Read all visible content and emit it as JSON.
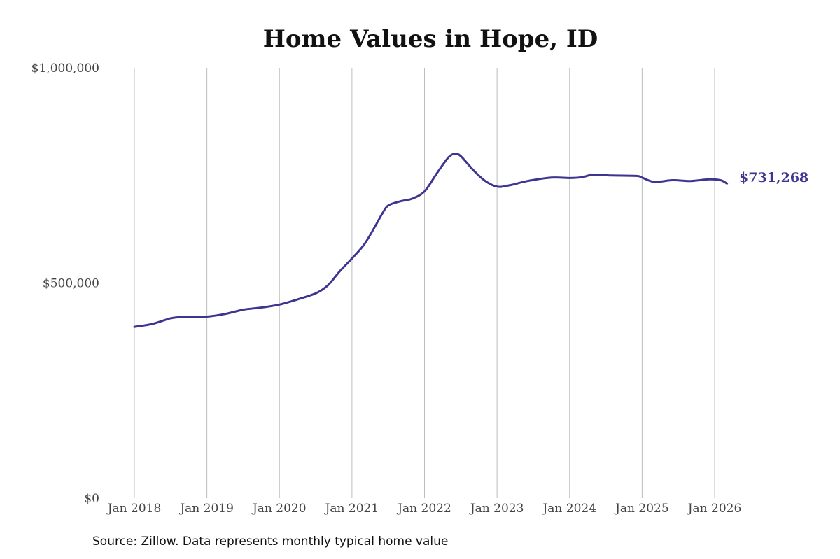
{
  "chart_data": {
    "type": "line",
    "title": "Home Values in Hope, ID",
    "source": "Source: Zillow. Data represents monthly typical home value",
    "y_ticks": [
      {
        "value": 0,
        "label": "$0"
      },
      {
        "value": 500000,
        "label": "$500,000"
      },
      {
        "value": 1000000,
        "label": "$1,000,000"
      }
    ],
    "x_ticks": [
      {
        "value": 2018,
        "label": "Jan 2018"
      },
      {
        "value": 2019,
        "label": "Jan 2019"
      },
      {
        "value": 2020,
        "label": "Jan 2020"
      },
      {
        "value": 2021,
        "label": "Jan 2021"
      },
      {
        "value": 2022,
        "label": "Jan 2022"
      },
      {
        "value": 2023,
        "label": "Jan 2023"
      },
      {
        "value": 2024,
        "label": "Jan 2024"
      },
      {
        "value": 2025,
        "label": "Jan 2025"
      },
      {
        "value": 2026,
        "label": "Jan 2026"
      }
    ],
    "xlim": [
      2018,
      2026.17
    ],
    "ylim": [
      0,
      1000000
    ],
    "grid": "vertical",
    "line_color": "#3d3590",
    "end_label": "$731,268",
    "series": [
      {
        "x": [
          2018.0,
          2018.25,
          2018.5,
          2018.67,
          2019.0,
          2019.25,
          2019.5,
          2019.75,
          2020.0,
          2020.25,
          2020.5,
          2020.67,
          2020.83,
          2021.0,
          2021.17,
          2021.33,
          2021.42,
          2021.5,
          2021.67,
          2021.83,
          2022.0,
          2022.17,
          2022.33,
          2022.42,
          2022.5,
          2022.67,
          2022.83,
          2023.0,
          2023.17,
          2023.42,
          2023.75,
          2024.0,
          2024.17,
          2024.33,
          2024.58,
          2024.92,
          2025.0,
          2025.17,
          2025.42,
          2025.67,
          2025.92,
          2026.08,
          2026.17
        ],
        "values": [
          398000,
          405000,
          418000,
          421000,
          422000,
          428000,
          438000,
          443000,
          450000,
          462000,
          476000,
          495000,
          527000,
          557000,
          590000,
          635000,
          662000,
          680000,
          690000,
          696000,
          713000,
          755000,
          792000,
          800000,
          795000,
          763000,
          738000,
          724000,
          727000,
          737000,
          745000,
          744000,
          746000,
          752000,
          750000,
          749000,
          745000,
          735000,
          739000,
          737000,
          741000,
          739000,
          731268
        ]
      }
    ]
  }
}
